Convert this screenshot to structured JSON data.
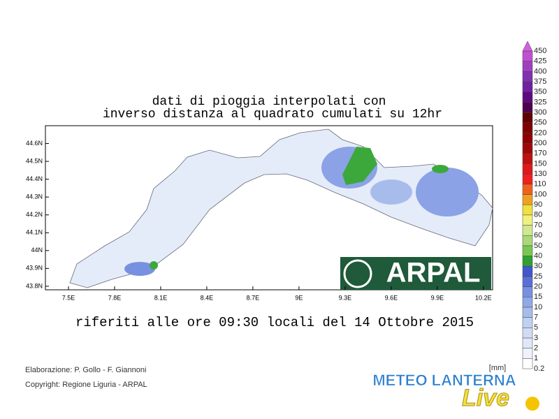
{
  "title": [
    "dati di pioggia interpolati con",
    "inverso distanza al quadrato cumulati su 12hr"
  ],
  "subtitle": "riferiti alle ore 09:30 locali del 14 Ottobre 2015",
  "map": {
    "xlim": [
      7.35,
      10.26
    ],
    "ylim": [
      43.78,
      44.7
    ],
    "xticks": [
      {
        "value": 7.5,
        "label": "7.5E"
      },
      {
        "value": 7.8,
        "label": "7.8E"
      },
      {
        "value": 8.1,
        "label": "8.1E"
      },
      {
        "value": 8.4,
        "label": "8.4E"
      },
      {
        "value": 8.7,
        "label": "8.7E"
      },
      {
        "value": 9,
        "label": "9E"
      },
      {
        "value": 9.3,
        "label": "9.3E"
      },
      {
        "value": 9.6,
        "label": "9.6E"
      },
      {
        "value": 9.9,
        "label": "9.9E"
      },
      {
        "value": 10.2,
        "label": "10.2E"
      }
    ],
    "yticks": [
      {
        "value": 44.6,
        "label": "44.6N"
      },
      {
        "value": 44.5,
        "label": "44.5N"
      },
      {
        "value": 44.4,
        "label": "44.4N"
      },
      {
        "value": 44.3,
        "label": "44.3N"
      },
      {
        "value": 44.2,
        "label": "44.2N"
      },
      {
        "value": 44.1,
        "label": "44.1N"
      },
      {
        "value": 44,
        "label": "44N"
      },
      {
        "value": 43.9,
        "label": "43.9N"
      },
      {
        "value": 43.8,
        "label": "43.8N"
      }
    ],
    "logo": "ARPAL"
  },
  "colorbar": {
    "unit": "[mm]",
    "levels": [
      0.2,
      1,
      2,
      3,
      5,
      7,
      10,
      15,
      20,
      25,
      30,
      40,
      50,
      60,
      70,
      80,
      90,
      100,
      110,
      130,
      150,
      170,
      200,
      220,
      250,
      300,
      325,
      350,
      375,
      400,
      425,
      450
    ],
    "colors": [
      "#ffffff",
      "#eef2fc",
      "#e0e8f8",
      "#d0dcf4",
      "#c0d0f0",
      "#a8bcec",
      "#90a8e8",
      "#7890e0",
      "#5a70d8",
      "#4058cc",
      "#30a030",
      "#78c850",
      "#a8d878",
      "#d0e890",
      "#f0f080",
      "#f0e040",
      "#f0a020",
      "#f06020",
      "#f02020",
      "#e01818",
      "#c01010",
      "#a00808",
      "#900000",
      "#800000",
      "#600000",
      "#500050",
      "#600880",
      "#7020a0",
      "#8030b0",
      "#a040c0",
      "#c050d0"
    ],
    "top_color": "#d060e0"
  },
  "credits": [
    "Elaborazione: P. Gollo - F. Giannoni",
    "Copyright: Regione Liguria - ARPAL"
  ],
  "brand": {
    "name": "METEO LANTERNA",
    "tag": "Live"
  }
}
